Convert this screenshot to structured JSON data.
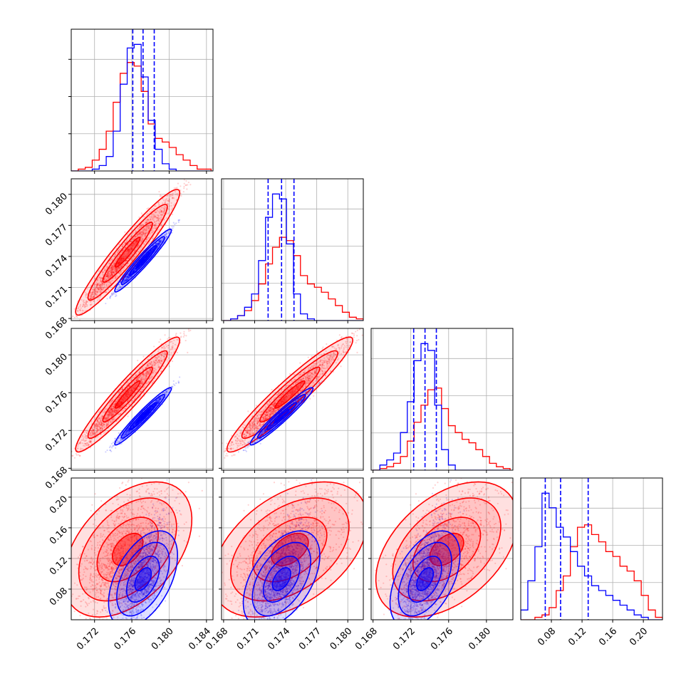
{
  "chart_data": {
    "type": "corner",
    "n_params": 4,
    "grid": true,
    "series": [
      {
        "color": "#ff0000",
        "mean": [
          0.175,
          0.1738,
          0.1752,
          0.123
        ],
        "std": [
          0.0022,
          0.0024,
          0.0024,
          0.035
        ],
        "corr": [
          [
            1,
            0.97,
            0.97,
            0.55
          ],
          [
            0.97,
            1,
            0.97,
            0.55
          ],
          [
            0.97,
            0.97,
            1,
            0.55
          ],
          [
            0.55,
            0.55,
            0.55,
            1
          ]
        ],
        "hist": [
          {
            "edges_range": [
              0.1695,
              0.1845
            ],
            "counts": [
              0,
              1,
              2,
              6,
              12,
              22,
              38,
              54,
              60,
              58,
              44,
              26,
              18,
              16,
              13,
              9,
              6,
              3,
              1,
              1
            ]
          },
          {
            "edges_range": [
              0.168,
              0.1815
            ],
            "counts": [
              0,
              1,
              3,
              6,
              12,
              22,
              34,
              44,
              50,
              48,
              39,
              27,
              22,
              20,
              17,
              13,
              9,
              5,
              2,
              1
            ]
          },
          {
            "edges_range": [
              0.168,
              0.1825
            ],
            "counts": [
              0,
              1,
              2,
              4,
              8,
              17,
              28,
              38,
              47,
              48,
              36,
              26,
              22,
              18,
              16,
              12,
              8,
              4,
              2,
              1
            ]
          },
          {
            "edges_range": [
              0.04,
              0.225
            ],
            "counts": [
              0,
              0,
              1,
              2,
              5,
              12,
              18,
              30,
              38,
              39,
              35,
              32,
              28,
              26,
              22,
              20,
              16,
              10,
              4,
              1
            ]
          }
        ]
      },
      {
        "color": "#0000ff",
        "mean": [
          0.1772,
          0.1736,
          0.1735,
          0.093
        ],
        "std": [
          0.0012,
          0.0012,
          0.0012,
          0.025
        ],
        "corr": [
          [
            1,
            0.98,
            0.98,
            0.6
          ],
          [
            0.98,
            1,
            0.98,
            0.6
          ],
          [
            0.98,
            0.98,
            1,
            0.6
          ],
          [
            0.6,
            0.6,
            0.6,
            1
          ]
        ],
        "hist": [
          {
            "edges_range": [
              0.1695,
              0.1845
            ],
            "counts": [
              0,
              0,
              0,
              1,
              3,
              8,
              22,
              48,
              68,
              70,
              52,
              28,
              12,
              4,
              1,
              0,
              0,
              0,
              0,
              0
            ]
          },
          {
            "edges_range": [
              0.168,
              0.1815
            ],
            "counts": [
              0,
              1,
              3,
              8,
              16,
              36,
              62,
              76,
              73,
              46,
              16,
              4,
              1,
              0,
              0,
              0,
              0,
              0,
              0,
              0
            ]
          },
          {
            "edges_range": [
              0.168,
              0.1825
            ],
            "counts": [
              0,
              3,
              6,
              10,
              22,
              40,
              64,
              74,
              70,
              38,
              12,
              3,
              0,
              0,
              0,
              0,
              0,
              0,
              0,
              0
            ]
          },
          {
            "edges_range": [
              0.04,
              0.225
            ],
            "counts": [
              4,
              16,
              30,
              52,
              46,
              38,
              34,
              28,
              22,
              18,
              14,
              12,
              10,
              8,
              6,
              4,
              2,
              1,
              0,
              0
            ]
          }
        ]
      }
    ],
    "quantile_lines": {
      "color": "#0000ff",
      "values": [
        [
          0.1761,
          0.1772,
          0.1784
        ],
        [
          0.1723,
          0.1736,
          0.1748
        ],
        [
          0.1723,
          0.1735,
          0.1747
        ],
        [
          0.072,
          0.092,
          0.128
        ]
      ]
    },
    "panels": {
      "x_ranges": [
        [
          0.1695,
          0.1847
        ],
        [
          0.1678,
          0.1815
        ],
        [
          0.1678,
          0.1828
        ],
        [
          0.04,
          0.225
        ]
      ],
      "y_ranges": [
        null,
        [
          0.1678,
          0.1815
        ],
        [
          0.1678,
          0.1828
        ],
        [
          0.04,
          0.225
        ]
      ],
      "x_ticks": [
        [
          0.172,
          0.176,
          0.18,
          0.184
        ],
        [
          0.168,
          0.171,
          0.174,
          0.177,
          0.18
        ],
        [
          0.168,
          0.172,
          0.176,
          0.18
        ],
        [
          0.08,
          0.12,
          0.16,
          0.2
        ]
      ],
      "x_tick_labels": [
        [
          "0.172",
          "0.176",
          "0.180",
          "0.184"
        ],
        [
          "0.168",
          "0.171",
          "0.174",
          "0.177",
          "0.180"
        ],
        [
          "0.168",
          "0.172",
          "0.176",
          "0.180"
        ],
        [
          "0.08",
          "0.12",
          "0.16",
          "0.20"
        ]
      ],
      "y_ticks": [
        null,
        [
          0.168,
          0.171,
          0.174,
          0.177,
          0.18
        ],
        [
          0.168,
          0.172,
          0.176,
          0.18
        ],
        [
          0.08,
          0.12,
          0.16,
          0.2
        ]
      ],
      "y_tick_labels": [
        null,
        [
          "0.168",
          "0.171",
          "0.174",
          "0.177",
          "0.180"
        ],
        [
          "0.168",
          "0.172",
          "0.176",
          "0.180"
        ],
        [
          "0.08",
          "0.12",
          "0.16",
          "0.20"
        ]
      ]
    }
  }
}
